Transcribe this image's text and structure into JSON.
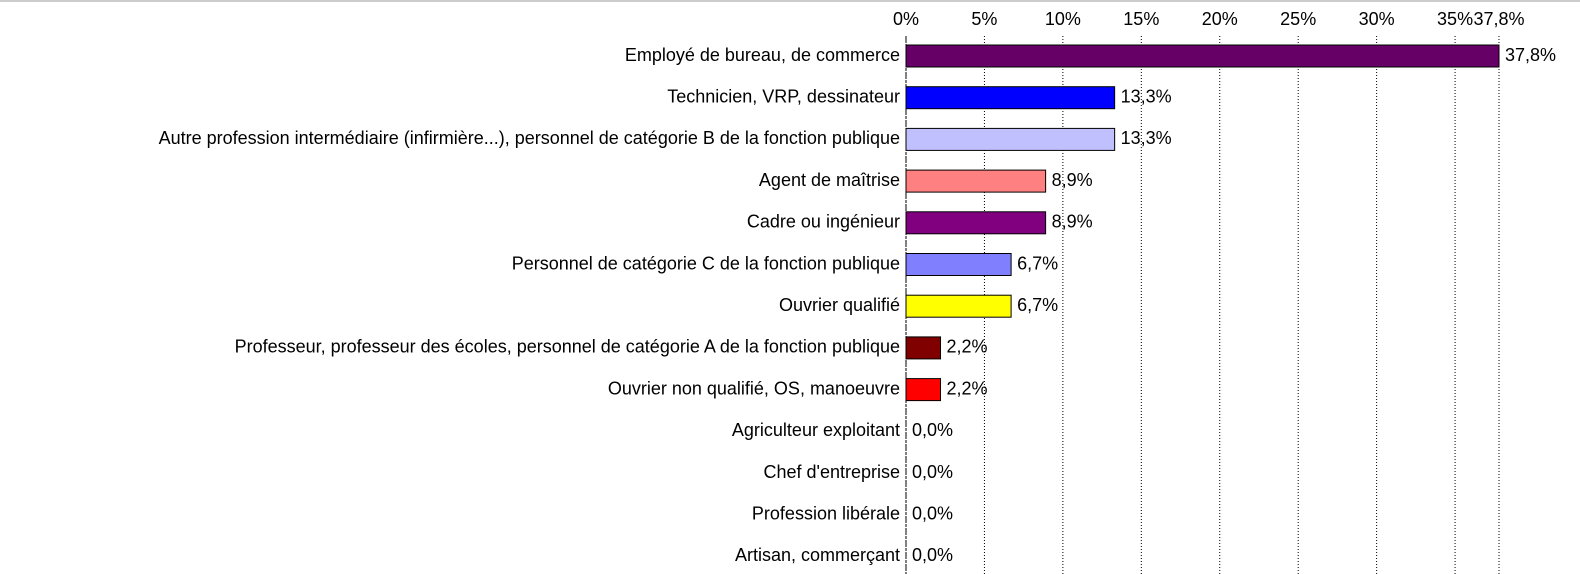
{
  "chart_data": {
    "type": "bar",
    "orientation": "horizontal",
    "categories": [
      "Employé de bureau, de commerce",
      "Technicien, VRP, dessinateur",
      "Autre profession intermédiaire (infirmière...), personnel de catégorie B de la fonction publique",
      "Agent de maîtrise",
      "Cadre ou ingénieur",
      "Personnel de catégorie C de la fonction publique",
      "Ouvrier qualifié",
      "Professeur, professeur des écoles, personnel de catégorie A de la fonction publique",
      "Ouvrier non qualifié, OS, manoeuvre",
      "Agriculteur exploitant",
      "Chef d'entreprise",
      "Profession libérale",
      "Artisan, commerçant"
    ],
    "values": [
      37.8,
      13.3,
      13.3,
      8.9,
      8.9,
      6.7,
      6.7,
      2.2,
      2.2,
      0.0,
      0.0,
      0.0,
      0.0
    ],
    "value_labels": [
      "37,8%",
      "13,3%",
      "13,3%",
      "8,9%",
      "8,9%",
      "6,7%",
      "6,7%",
      "2,2%",
      "2,2%",
      "0,0%",
      "0,0%",
      "0,0%",
      "0,0%"
    ],
    "colors": [
      "#660066",
      "#0000ff",
      "#c0c0ff",
      "#ff8080",
      "#800080",
      "#8080ff",
      "#ffff00",
      "#800000",
      "#ff0000",
      "#cccccc",
      "#cccccc",
      "#cccccc",
      "#cccccc"
    ],
    "xlim": [
      0,
      37.8
    ],
    "xticks": [
      {
        "value": 0,
        "label": "0%"
      },
      {
        "value": 5,
        "label": "5%"
      },
      {
        "value": 10,
        "label": "10%"
      },
      {
        "value": 15,
        "label": "15%"
      },
      {
        "value": 20,
        "label": "20%"
      },
      {
        "value": 25,
        "label": "25%"
      },
      {
        "value": 30,
        "label": "30%"
      },
      {
        "value": 35,
        "label": "35%"
      },
      {
        "value": 37.8,
        "label": "37,8%"
      }
    ],
    "grid": true
  }
}
